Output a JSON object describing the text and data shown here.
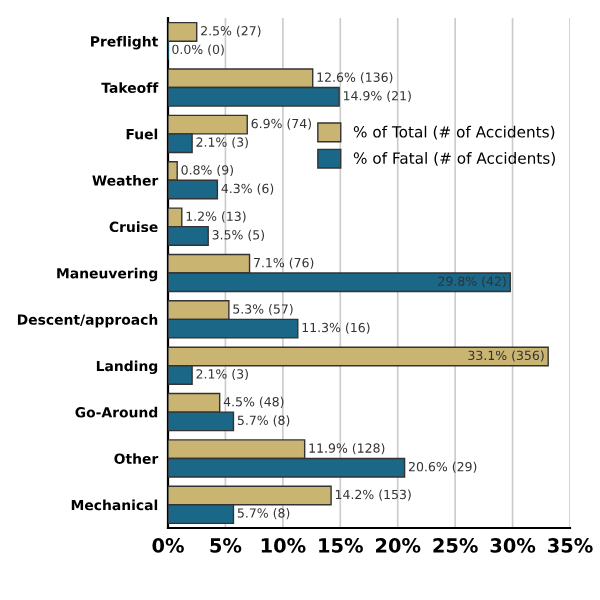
{
  "chart_data": {
    "type": "bar",
    "orientation": "horizontal",
    "categories": [
      "Preflight",
      "Takeoff",
      "Fuel",
      "Weather",
      "Cruise",
      "Maneuvering",
      "Descent/approach",
      "Landing",
      "Go-Around",
      "Other",
      "Mechanical"
    ],
    "series": [
      {
        "name": "% of Total (# of Accidents)",
        "color": "#c9b472",
        "values": [
          2.5,
          12.6,
          6.9,
          0.8,
          1.2,
          7.1,
          5.3,
          33.1,
          4.5,
          11.9,
          14.2
        ],
        "value_labels": [
          "2.5% (27)",
          "12.6% (136)",
          "6.9% (74)",
          "0.8% (9)",
          "1.2% (13)",
          "7.1% (76)",
          "5.3% (57)",
          "33.1% (356)",
          "4.5% (48)",
          "11.9% (128)",
          "14.2% (153)"
        ]
      },
      {
        "name": "% of Fatal (# of Accidents)",
        "color": "#1a6788",
        "values": [
          0.0,
          14.9,
          2.1,
          4.3,
          3.5,
          29.8,
          11.3,
          2.1,
          5.7,
          20.6,
          5.7
        ],
        "value_labels": [
          "0.0% (0)",
          "14.9% (21)",
          "2.1% (3)",
          "4.3% (6)",
          "3.5% (5)",
          "29.8% (42)",
          "11.3% (16)",
          "2.1% (3)",
          "5.7% (8)",
          "20.6% (29)",
          "5.7% (8)"
        ]
      }
    ],
    "xlim": [
      0,
      35
    ],
    "xticks": [
      {
        "value": 0,
        "label": "0%"
      },
      {
        "value": 5,
        "label": "5%"
      },
      {
        "value": 10,
        "label": "10%"
      },
      {
        "value": 15,
        "label": "15%"
      },
      {
        "value": 20,
        "label": "20%"
      },
      {
        "value": 25,
        "label": "25%"
      },
      {
        "value": 30,
        "label": "30%"
      },
      {
        "value": 35,
        "label": "35%"
      }
    ],
    "grid": "x",
    "legend": "right"
  }
}
